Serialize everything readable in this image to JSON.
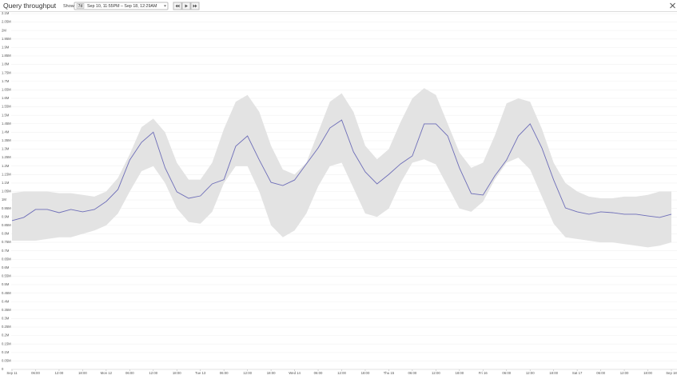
{
  "header": {
    "title": "Query throughput",
    "show_label": "Show",
    "range_badge": "7d",
    "range_text": "Sep 10, 11:55PM – Sep 18, 12:29AM"
  },
  "chart_data": {
    "type": "line",
    "categories": [
      "Sep 11",
      null,
      "06:00",
      null,
      "12:00",
      null,
      "18:00",
      null,
      "Mon 12",
      null,
      "06:00",
      null,
      "12:00",
      null,
      "18:00",
      null,
      "Tue 13",
      null,
      "06:00",
      null,
      "12:00",
      null,
      "18:00",
      null,
      "Wed 14",
      null,
      "06:00",
      null,
      "12:00",
      null,
      "18:00",
      null,
      "Thu 15",
      null,
      "06:00",
      null,
      "12:00",
      null,
      "18:00",
      null,
      "Fri 16",
      null,
      "06:00",
      null,
      "12:00",
      null,
      "18:00",
      null,
      "Sat 17",
      null,
      "06:00",
      null,
      "12:00",
      null,
      "18:00",
      null,
      "Sep 18"
    ],
    "series": [
      {
        "color": "#6e6eb8",
        "values": [
          878000,
          897000,
          944000,
          944000,
          925000,
          944000,
          930000,
          944000,
          991000,
          1062000,
          1236000,
          1340000,
          1400000,
          1190000,
          1048000,
          1010000,
          1024000,
          1095000,
          1120000,
          1317000,
          1378000,
          1236000,
          1104000,
          1085000,
          1118000,
          1213000,
          1307000,
          1425000,
          1472000,
          1284000,
          1166000,
          1095000,
          1151000,
          1213000,
          1260000,
          1449000,
          1449000,
          1378000,
          1189000,
          1038000,
          1029000,
          1142000,
          1236000,
          1378000,
          1449000,
          1307000,
          1118000,
          953000,
          930000,
          916000,
          930000,
          925000,
          916000,
          916000,
          906000,
          897000,
          916000
        ]
      }
    ],
    "band": {
      "color": "#e3e3e3",
      "upper": [
        1040000,
        1050000,
        1050000,
        1050000,
        1040000,
        1040000,
        1030000,
        1020000,
        1050000,
        1130000,
        1270000,
        1430000,
        1480000,
        1400000,
        1220000,
        1120000,
        1120000,
        1220000,
        1420000,
        1580000,
        1620000,
        1520000,
        1320000,
        1180000,
        1150000,
        1220000,
        1400000,
        1580000,
        1630000,
        1520000,
        1320000,
        1240000,
        1300000,
        1460000,
        1600000,
        1660000,
        1620000,
        1450000,
        1280000,
        1190000,
        1220000,
        1380000,
        1570000,
        1600000,
        1580000,
        1420000,
        1220000,
        1100000,
        1050000,
        1020000,
        1010000,
        1010000,
        1020000,
        1020000,
        1030000,
        1050000,
        1050000
      ],
      "lower": [
        760000,
        760000,
        760000,
        770000,
        780000,
        780000,
        800000,
        820000,
        850000,
        920000,
        1050000,
        1170000,
        1200000,
        1100000,
        950000,
        870000,
        860000,
        930000,
        1100000,
        1200000,
        1200000,
        1050000,
        850000,
        780000,
        820000,
        920000,
        1080000,
        1200000,
        1220000,
        1070000,
        920000,
        900000,
        950000,
        1100000,
        1220000,
        1240000,
        1210000,
        1080000,
        950000,
        930000,
        990000,
        1120000,
        1220000,
        1250000,
        1180000,
        1020000,
        860000,
        780000,
        770000,
        760000,
        750000,
        750000,
        740000,
        730000,
        720000,
        730000,
        750000
      ]
    },
    "ylim": [
      0,
      2100000
    ],
    "yticks": [
      0,
      {
        "value": 50000,
        "label": "0.05M"
      },
      {
        "value": 100000,
        "label": "0.1M"
      },
      {
        "value": 150000,
        "label": "0.15M"
      },
      {
        "value": 200000,
        "label": "0.2M"
      },
      {
        "value": 250000,
        "label": "0.25M"
      },
      {
        "value": 300000,
        "label": "0.3M"
      },
      {
        "value": 350000,
        "label": "0.35M"
      },
      {
        "value": 400000,
        "label": "0.4M"
      },
      {
        "value": 450000,
        "label": "0.45M"
      },
      {
        "value": 500000,
        "label": "0.5M"
      },
      {
        "value": 550000,
        "label": "0.55M"
      },
      {
        "value": 600000,
        "label": "0.6M"
      },
      {
        "value": 650000,
        "label": "0.65M"
      },
      {
        "value": 700000,
        "label": "0.7M"
      },
      {
        "value": 750000,
        "label": "0.75M"
      },
      {
        "value": 800000,
        "label": "0.8M"
      },
      {
        "value": 850000,
        "label": "0.85M"
      },
      {
        "value": 900000,
        "label": "0.9M"
      },
      {
        "value": 950000,
        "label": "0.95M"
      },
      {
        "value": 1000000,
        "label": "1M"
      },
      {
        "value": 1050000,
        "label": "1.05M"
      },
      {
        "value": 1100000,
        "label": "1.1M"
      },
      {
        "value": 1150000,
        "label": "1.15M"
      },
      {
        "value": 1200000,
        "label": "1.2M"
      },
      {
        "value": 1250000,
        "label": "1.25M"
      },
      {
        "value": 1300000,
        "label": "1.3M"
      },
      {
        "value": 1350000,
        "label": "1.35M"
      },
      {
        "value": 1400000,
        "label": "1.4M"
      },
      {
        "value": 1450000,
        "label": "1.45M"
      },
      {
        "value": 1500000,
        "label": "1.5M"
      },
      {
        "value": 1550000,
        "label": "1.55M"
      },
      {
        "value": 1600000,
        "label": "1.6M"
      },
      {
        "value": 1650000,
        "label": "1.65M"
      },
      {
        "value": 1700000,
        "label": "1.7M"
      },
      {
        "value": 1750000,
        "label": "1.75M"
      },
      {
        "value": 1800000,
        "label": "1.8M"
      },
      {
        "value": 1850000,
        "label": "1.85M"
      },
      {
        "value": 1900000,
        "label": "1.9M"
      },
      {
        "value": 1950000,
        "label": "1.95M"
      },
      {
        "value": 2000000,
        "label": "2M"
      },
      {
        "value": 2050000,
        "label": "2.05M"
      },
      {
        "value": 2100000,
        "label": "2.1M"
      }
    ],
    "grid": true
  }
}
